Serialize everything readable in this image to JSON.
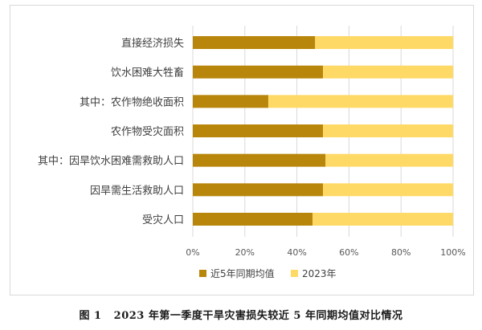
{
  "caption": {
    "label": "图 1",
    "text": "2023 年第一季度干旱灾害损失较近 5 年同期均值对比情况"
  },
  "chart_data": {
    "type": "bar",
    "orientation": "horizontal",
    "stacked": "percent",
    "categories": [
      "直接经济损失",
      "饮水困难大牲畜",
      "其中：农作物绝收面积",
      "农作物受灾面积",
      "其中：因旱饮水困难需救助人口",
      "因旱需生活救助人口",
      "受灾人口"
    ],
    "series": [
      {
        "name": "近5年同期均值",
        "color": "#b8860b",
        "values": [
          47,
          50,
          29,
          50,
          51,
          50,
          46
        ]
      },
      {
        "name": "2023年",
        "color": "#ffd966",
        "values": [
          53,
          50,
          71,
          50,
          49,
          50,
          54
        ]
      }
    ],
    "xlim": [
      0,
      100
    ],
    "xticks": [
      "0%",
      "20%",
      "40%",
      "60%",
      "80%",
      "100%"
    ],
    "grid": true,
    "legend_position": "bottom"
  }
}
